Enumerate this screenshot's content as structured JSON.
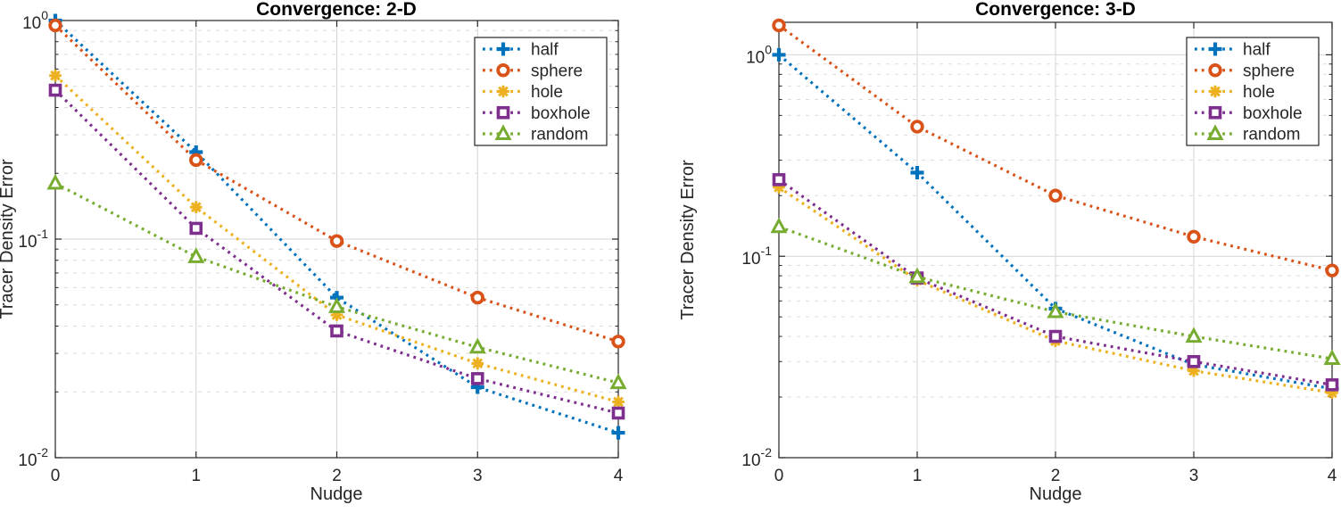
{
  "figure": {
    "background": "#ffffff",
    "axis_color": "#262626",
    "grid_major_color": "#d4d4d4",
    "grid_minor_color": "#dcdcdc",
    "text_color": "#262626"
  },
  "chart_data": [
    {
      "type": "line",
      "title": "Convergence: 2-D",
      "xlabel": "Nudge",
      "ylabel": "Tracer Density Error",
      "yscale": "log",
      "xlim": [
        0,
        4
      ],
      "ylim": [
        0.01,
        1.0
      ],
      "xticks": [
        0,
        1,
        2,
        3,
        4
      ],
      "yticks": [
        {
          "value": 1,
          "exp": "0"
        },
        {
          "value": 0.1,
          "exp": "-1"
        },
        {
          "value": 0.01,
          "exp": "-2"
        }
      ],
      "grid": true,
      "legend_position": "top-right",
      "x": [
        0,
        1,
        2,
        3,
        4
      ],
      "series": [
        {
          "name": "half",
          "color": "#0072BD",
          "marker": "plus",
          "linestyle": "dotted",
          "values": [
            1.0,
            0.25,
            0.054,
            0.021,
            0.013
          ]
        },
        {
          "name": "sphere",
          "color": "#D95319",
          "marker": "circle",
          "linestyle": "dotted",
          "values": [
            0.95,
            0.23,
            0.098,
            0.054,
            0.034
          ]
        },
        {
          "name": "hole",
          "color": "#EDB120",
          "marker": "asterisk",
          "linestyle": "dotted",
          "values": [
            0.56,
            0.14,
            0.045,
            0.027,
            0.018
          ]
        },
        {
          "name": "boxhole",
          "color": "#7E2F8E",
          "marker": "square",
          "linestyle": "dotted",
          "values": [
            0.48,
            0.112,
            0.038,
            0.023,
            0.016
          ]
        },
        {
          "name": "random",
          "color": "#77AC30",
          "marker": "triangle-up",
          "linestyle": "dotted",
          "values": [
            0.18,
            0.083,
            0.049,
            0.032,
            0.022
          ]
        }
      ]
    },
    {
      "type": "line",
      "title": "Convergence: 3-D",
      "xlabel": "Nudge",
      "ylabel": "Tracer Density Error",
      "yscale": "log",
      "xlim": [
        0,
        4
      ],
      "ylim": [
        0.01,
        1.45
      ],
      "xticks": [
        0,
        1,
        2,
        3,
        4
      ],
      "yticks": [
        {
          "value": 1,
          "exp": "0"
        },
        {
          "value": 0.1,
          "exp": "-1"
        },
        {
          "value": 0.01,
          "exp": "-2"
        }
      ],
      "grid": true,
      "legend_position": "top-right",
      "x": [
        0,
        1,
        2,
        3,
        4
      ],
      "series": [
        {
          "name": "half",
          "color": "#0072BD",
          "marker": "plus",
          "linestyle": "dotted",
          "values": [
            1.0,
            0.26,
            0.055,
            0.029,
            0.022
          ]
        },
        {
          "name": "sphere",
          "color": "#D95319",
          "marker": "circle",
          "linestyle": "dotted",
          "values": [
            1.4,
            0.44,
            0.2,
            0.125,
            0.085
          ]
        },
        {
          "name": "hole",
          "color": "#EDB120",
          "marker": "asterisk",
          "linestyle": "dotted",
          "values": [
            0.22,
            0.076,
            0.038,
            0.027,
            0.021
          ]
        },
        {
          "name": "boxhole",
          "color": "#7E2F8E",
          "marker": "square",
          "linestyle": "dotted",
          "values": [
            0.24,
            0.078,
            0.04,
            0.03,
            0.023
          ]
        },
        {
          "name": "random",
          "color": "#77AC30",
          "marker": "triangle-up",
          "linestyle": "dotted",
          "values": [
            0.14,
            0.079,
            0.053,
            0.04,
            0.031
          ]
        }
      ]
    }
  ]
}
